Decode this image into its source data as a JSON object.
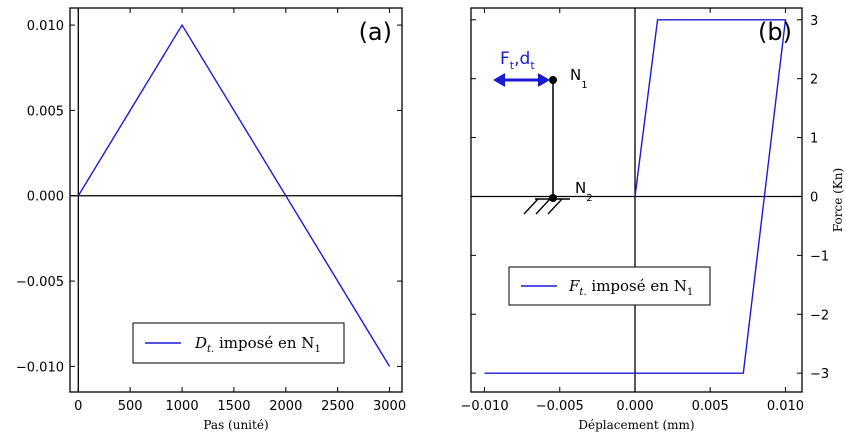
{
  "chart_data": [
    {
      "type": "line",
      "panel_label": "(a)",
      "xlabel": "Pas (unité)",
      "ylabel": "",
      "xlim": [
        -80,
        3120
      ],
      "ylim": [
        -0.0115,
        0.011
      ],
      "xticks": [
        0,
        500,
        1000,
        1500,
        2000,
        2500,
        3000
      ],
      "xtick_labels": [
        "0",
        "500",
        "1000",
        "1500",
        "2000",
        "2500",
        "3000"
      ],
      "yticks": [
        0.01,
        0.005,
        0.0,
        -0.005,
        -0.01
      ],
      "ytick_labels": [
        "0.010",
        "0.005",
        "0.000",
        "−0.005",
        "−0.010"
      ],
      "zero_line": true,
      "legend": {
        "placement": "lower-center",
        "entry": {
          "main": "D",
          "sub": "t.",
          "rest": " imposé en N",
          "sub2": "1"
        }
      },
      "series": [
        {
          "name": "D_t. imposé en N_1",
          "color": "#1a1ad6",
          "x": [
            0,
            1000,
            3000
          ],
          "y": [
            0.0,
            0.01,
            -0.01
          ]
        }
      ]
    },
    {
      "type": "line",
      "panel_label": "(b)",
      "xlabel": "Déplacement (mm)",
      "ylabel": "Force (Kn)",
      "xlim": [
        -0.0109,
        0.0111
      ],
      "ylim": [
        -3.32,
        3.2
      ],
      "xticks": [
        -0.01,
        -0.005,
        0.0,
        0.005,
        0.01
      ],
      "xtick_labels": [
        "−0.010",
        "−0.005",
        "0.000",
        "0.005",
        "0.010"
      ],
      "yticks": [
        3,
        2,
        1,
        0,
        -1,
        -2,
        -3
      ],
      "ytick_labels": [
        "3",
        "2",
        "1",
        "0",
        "−1",
        "−2",
        "−3"
      ],
      "zero_line": true,
      "vertical_zero_line": true,
      "legend": {
        "placement": "center-left",
        "entry": {
          "main": "F",
          "sub": "t.",
          "rest": " imposé en N",
          "sub2": "1"
        }
      },
      "series": [
        {
          "name": "F_t. imposé en N_1",
          "color": "#1a1ad6",
          "x": [
            0.0,
            0.0015,
            0.01,
            0.0072,
            -0.01
          ],
          "y": [
            0.0,
            3.0,
            3.0,
            -3.0,
            -3.0
          ]
        }
      ],
      "inset": {
        "force_label": {
          "main": "F",
          "sub1": "t",
          "sep": ",d",
          "sub2": "t"
        },
        "node_top": {
          "main": "N",
          "sub": "1"
        },
        "node_bottom": {
          "main": "N",
          "sub": "2"
        }
      }
    }
  ],
  "colors": {
    "series": "#1a1ad6",
    "axes": "#000000"
  }
}
